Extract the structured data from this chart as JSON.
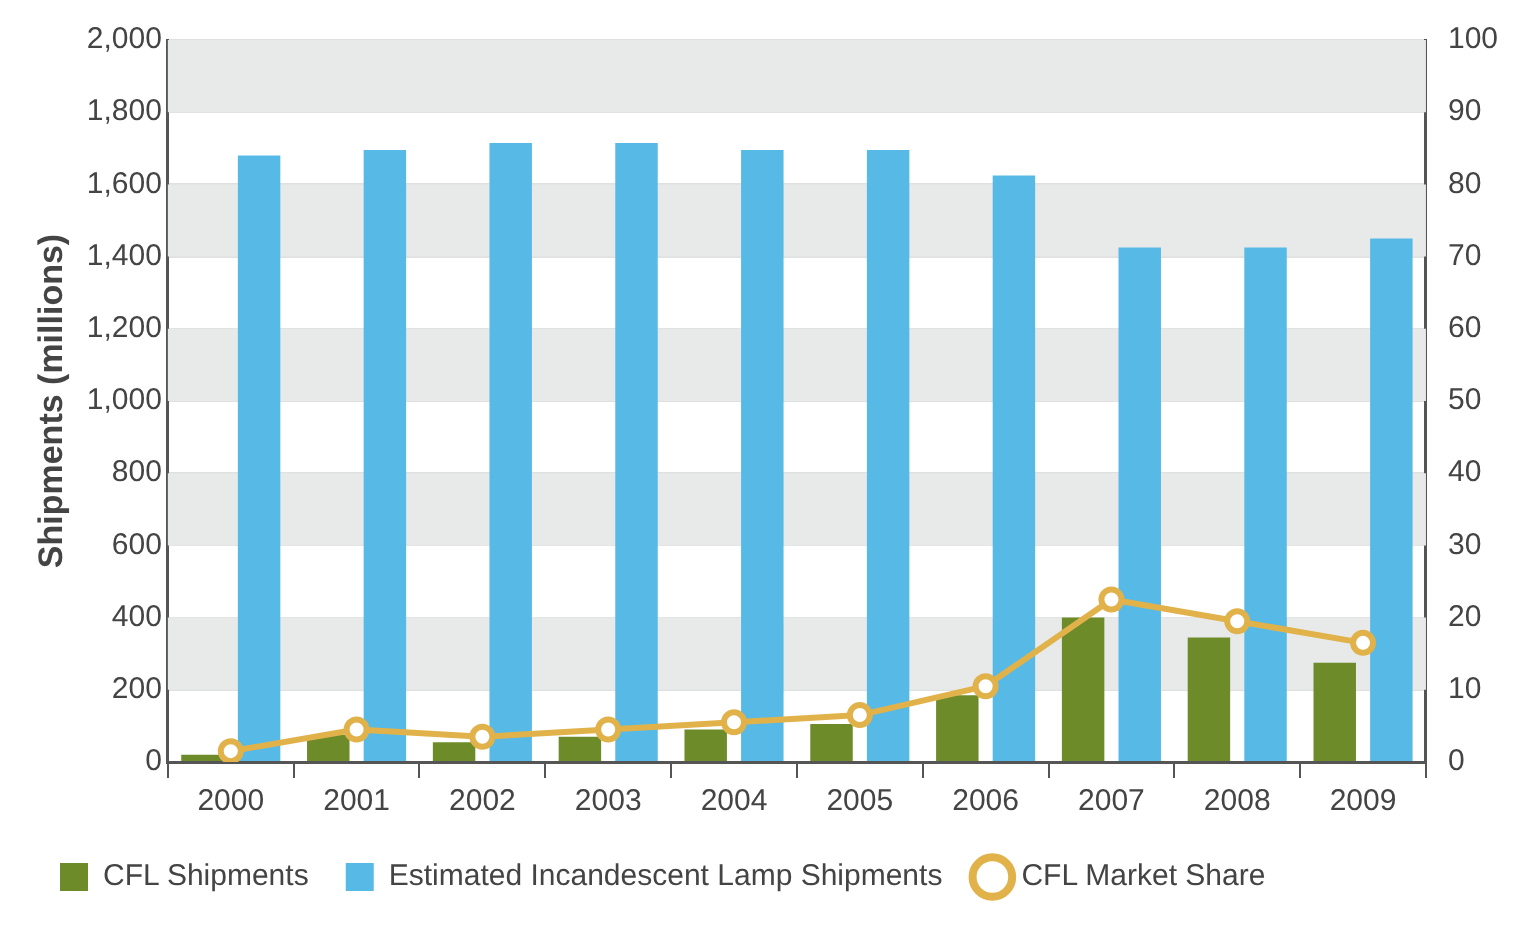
{
  "chart_data": {
    "type": "bar",
    "ylabel": "Shipments (millions)",
    "categories": [
      "2000",
      "2001",
      "2002",
      "2003",
      "2004",
      "2005",
      "2006",
      "2007",
      "2008",
      "2009"
    ],
    "series": [
      {
        "name": "CFL Shipments",
        "color": "#6e8b2a",
        "values": [
          20,
          75,
          55,
          70,
          90,
          105,
          185,
          400,
          345,
          275
        ]
      },
      {
        "name": "Estimated Incandescent Lamp Shipments",
        "color": "#56b9e6",
        "values": [
          1680,
          1695,
          1715,
          1715,
          1695,
          1695,
          1625,
          1425,
          1425,
          1450
        ]
      },
      {
        "name": "CFL Market Share",
        "type": "line",
        "axis": "y2",
        "color": "#e2b24a",
        "marker": "circle",
        "values": [
          1.5,
          4.5,
          3.5,
          4.5,
          5.5,
          6.5,
          10.5,
          22.5,
          19.5,
          16.5
        ]
      }
    ],
    "ylim": [
      0,
      2000
    ],
    "yticks": [
      {
        "value": 0,
        "label": "0"
      },
      {
        "value": 200,
        "label": "200"
      },
      {
        "value": 400,
        "label": "400"
      },
      {
        "value": 600,
        "label": "600"
      },
      {
        "value": 800,
        "label": "800"
      },
      {
        "value": 1000,
        "label": "1,000"
      },
      {
        "value": 1200,
        "label": "1,200"
      },
      {
        "value": 1400,
        "label": "1,400"
      },
      {
        "value": 1600,
        "label": "1,600"
      },
      {
        "value": 1800,
        "label": "1,800"
      },
      {
        "value": 2000,
        "label": "2,000"
      }
    ],
    "y2lim": [
      0,
      100
    ],
    "y2ticks": [
      0,
      10,
      20,
      30,
      40,
      50,
      60,
      70,
      80,
      90,
      100
    ],
    "grid": "y",
    "legend": "bottom"
  }
}
